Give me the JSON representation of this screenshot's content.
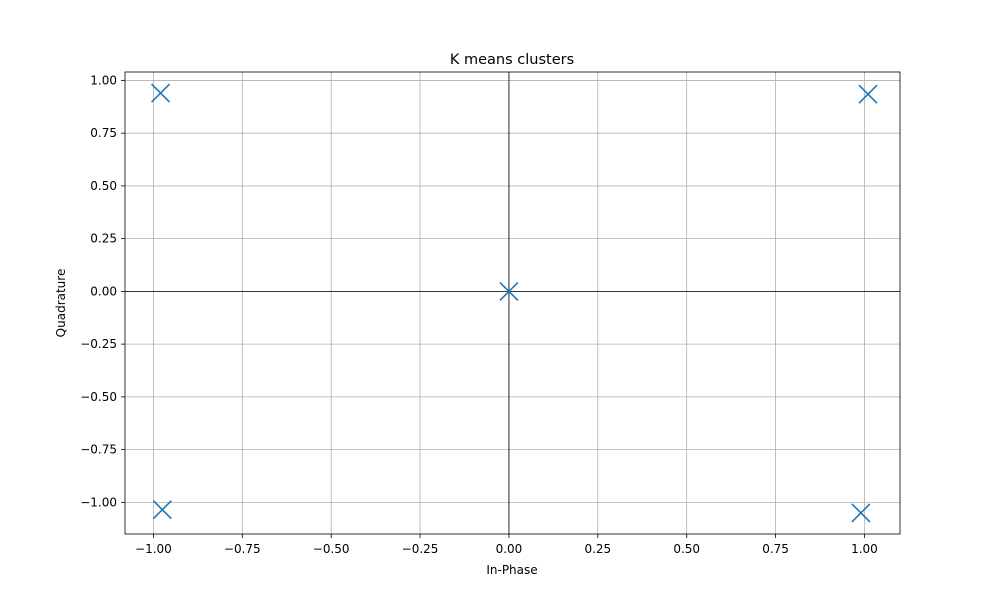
{
  "chart_data": {
    "type": "scatter",
    "title": "K means clusters",
    "xlabel": "In-Phase",
    "ylabel": "Quadrature",
    "xlim": [
      -1.08,
      1.1
    ],
    "ylim": [
      -1.15,
      1.04
    ],
    "x_ticks": [
      -1.0,
      -0.75,
      -0.5,
      -0.25,
      0.0,
      0.25,
      0.5,
      0.75,
      1.0
    ],
    "x_tick_labels": [
      "−1.00",
      "−0.75",
      "−0.50",
      "−0.25",
      "0.00",
      "0.25",
      "0.50",
      "0.75",
      "1.00"
    ],
    "y_ticks": [
      1.0,
      0.75,
      0.5,
      0.25,
      0.0,
      -0.25,
      -0.5,
      -0.75,
      -1.0
    ],
    "y_tick_labels": [
      "1.00",
      "0.75",
      "0.50",
      "0.25",
      "0.00",
      "−0.25",
      "−0.50",
      "−0.75",
      "−1.00"
    ],
    "grid": true,
    "zero_lines": true,
    "marker": "x",
    "color": "#1f77b4",
    "points": [
      {
        "x": -0.98,
        "y": 0.94
      },
      {
        "x": 1.01,
        "y": 0.935
      },
      {
        "x": 0.0,
        "y": 0.0
      },
      {
        "x": -0.975,
        "y": -1.035
      },
      {
        "x": 0.99,
        "y": -1.05
      }
    ]
  }
}
